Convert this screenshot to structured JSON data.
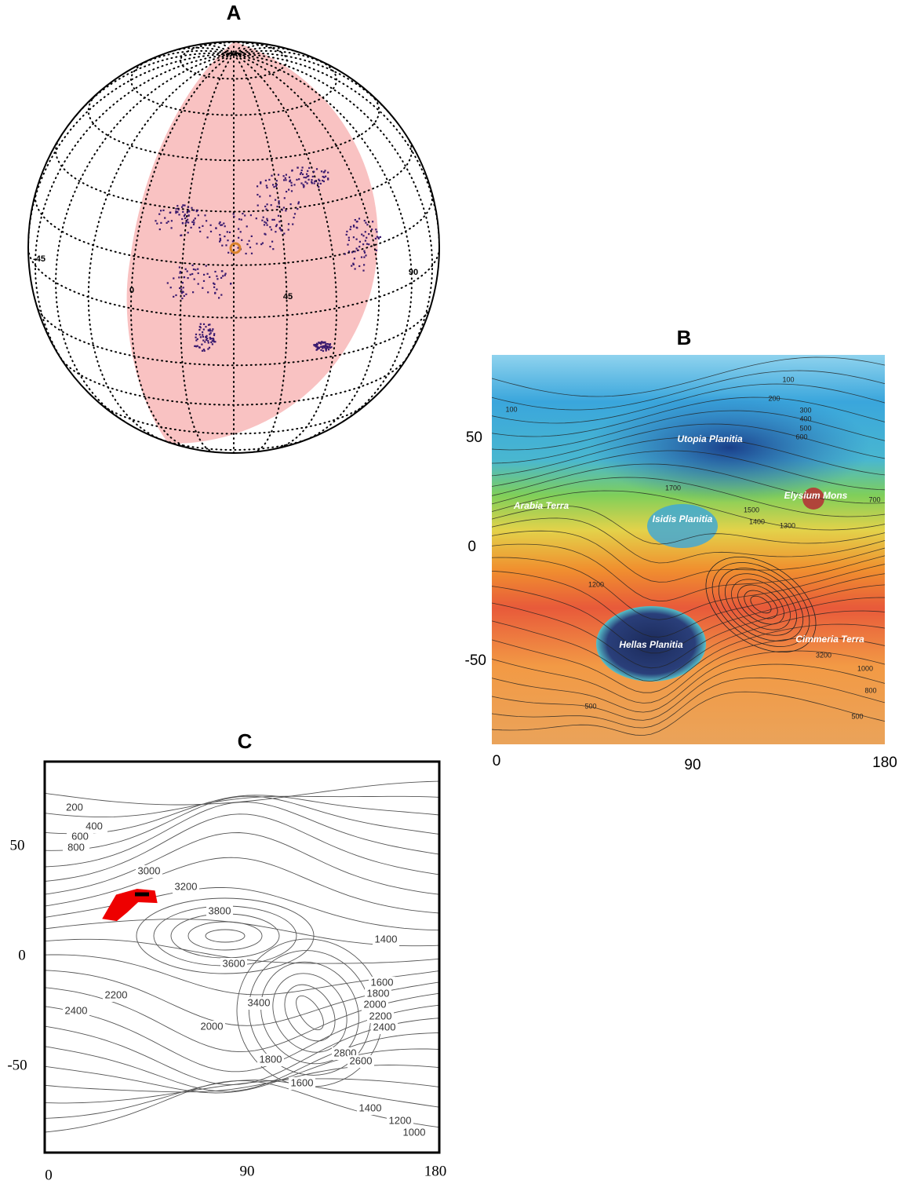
{
  "panels": [
    {
      "label": "A",
      "globe_labels": [
        -45,
        0,
        45,
        90
      ]
    },
    {
      "label": "B",
      "y_ticks": [
        50,
        0,
        -50
      ],
      "x_ticks": [
        0,
        90,
        180
      ],
      "place_names": [
        "Utopia Planitia",
        "Arabia Terra",
        "Elysium Mons",
        "Isidis Planitia",
        "Hellas Planitia",
        "Cimmeria Terra"
      ],
      "contour_labels": [
        100,
        100,
        200,
        300,
        400,
        500,
        600,
        700,
        1700,
        1500,
        1400,
        1300,
        1200,
        1000,
        800,
        500,
        500,
        3200
      ]
    },
    {
      "label": "C",
      "y_ticks": [
        50,
        0,
        -50
      ],
      "x_ticks": [
        0,
        90,
        180
      ],
      "contour_labels": [
        200,
        400,
        600,
        800,
        3000,
        3200,
        3800,
        3600,
        1400,
        1600,
        1800,
        2000,
        2200,
        2400,
        3400,
        2200,
        2400,
        2000,
        2800,
        2600,
        1800,
        1600,
        1400,
        1200,
        1000
      ]
    }
  ]
}
